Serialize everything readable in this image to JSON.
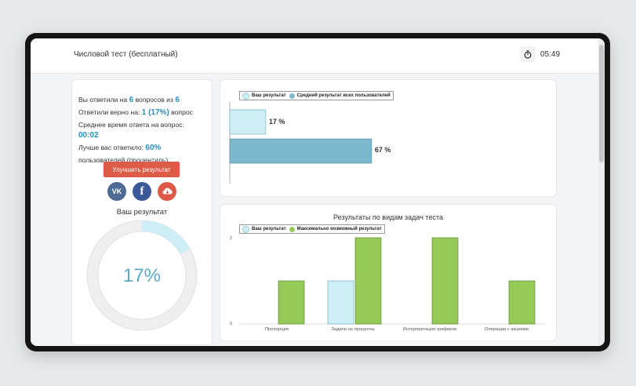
{
  "app": {
    "title": "Числовой тест (бесплатный)",
    "timer": "05:49",
    "timer_icon": "stopwatch-icon"
  },
  "stats": {
    "line1_a": "Вы ответили на ",
    "answered": "6",
    "line1_b": " вопросов из ",
    "total": "6",
    "line2_a": "Ответили верно на: ",
    "correct": "1 (17%)",
    "line2_b": " вопрос",
    "line3": "Среднее время ответа на вопрос:",
    "avg_time": "00:02",
    "line5_a": "Лучше вас ответило: ",
    "better": "60%",
    "line6": "пользователей (процентиль)."
  },
  "improve_button": "Улучшить результат",
  "social": {
    "vk": "VK",
    "fb": "f",
    "download_icon": "cloud-download-icon"
  },
  "result": {
    "label": "Ваш результат",
    "value": "17%",
    "fraction": 0.17
  },
  "colors": {
    "accent": "#2a8fbd",
    "button": "#dd5c47",
    "your": "#cdeef5",
    "avg": "#7db8cc",
    "max": "#96c957"
  },
  "chart_data": [
    {
      "type": "bar",
      "orientation": "horizontal",
      "legend": [
        "Ваш результат",
        "Средний результат всех пользователей"
      ],
      "series": [
        {
          "name": "Ваш результат",
          "value": 17,
          "label": "17 %"
        },
        {
          "name": "Средний результат всех пользователей",
          "value": 67,
          "label": "67 %"
        }
      ],
      "xlim": [
        0,
        100
      ]
    },
    {
      "type": "bar",
      "title": "Результаты по видам задач теста",
      "legend": [
        "Ваш результат",
        "Максимально возможный результат"
      ],
      "categories": [
        "Пропорции",
        "Задачи на проценты",
        "Интерпретация графиков",
        "Операции с акциями"
      ],
      "series": [
        {
          "name": "Ваш результат",
          "values": [
            0,
            1,
            0,
            0
          ]
        },
        {
          "name": "Максимально возможный результат",
          "values": [
            1,
            2,
            2,
            1
          ]
        }
      ],
      "yticks": [
        "2",
        "0"
      ],
      "ylim": [
        0,
        2
      ]
    }
  ]
}
